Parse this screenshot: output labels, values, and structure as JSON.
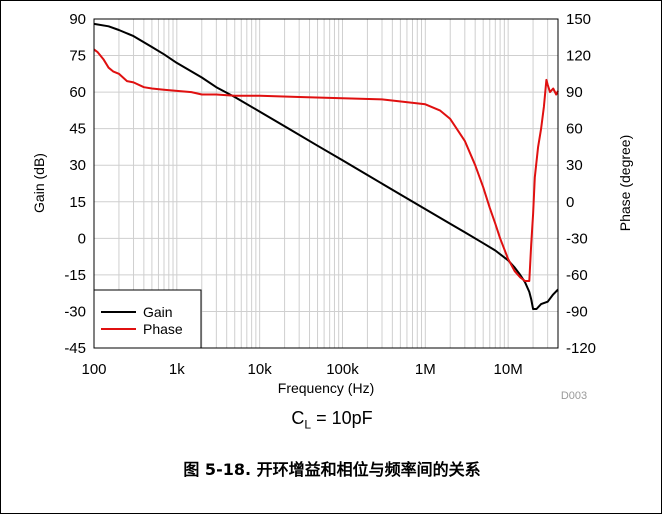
{
  "chart_data": {
    "type": "line",
    "xscale": "log",
    "xlabel": "Frequency (Hz)",
    "ylabel": "Gain (dB)",
    "y2label": "Phase (degree)",
    "xlim": [
      100,
      40000000
    ],
    "ylim": [
      -45,
      90
    ],
    "y2lim": [
      -120,
      150
    ],
    "x_ticks": [
      100,
      1000,
      10000,
      100000,
      1000000,
      10000000
    ],
    "x_tick_labels": [
      "100",
      "1k",
      "10k",
      "100k",
      "1M",
      "10M"
    ],
    "y_ticks": [
      90,
      75,
      60,
      45,
      30,
      15,
      0,
      -15,
      -30,
      -45
    ],
    "y_tick_labels": [
      "90",
      "75",
      "60",
      "45",
      "30",
      "15",
      "0",
      "-15",
      "-30",
      "-45"
    ],
    "y2_ticks": [
      150,
      120,
      90,
      60,
      30,
      0,
      -30,
      -60,
      -90,
      -120
    ],
    "y2_tick_labels": [
      "150",
      "120",
      "90",
      "60",
      "30",
      "0",
      "-30",
      "-60",
      "-90",
      "-120"
    ],
    "grid": true,
    "legend_position": "bottom-left",
    "figure_id": "D003",
    "series": [
      {
        "name": "Gain",
        "axis": "left",
        "color": "#000000",
        "x": [
          100,
          150,
          200,
          300,
          500,
          700,
          1000,
          2000,
          3000,
          5000,
          10000,
          20000,
          50000,
          100000,
          200000,
          500000,
          1000000,
          2000000,
          3000000,
          5000000,
          7000000,
          10000000,
          12000000,
          14000000,
          16000000,
          18000000,
          19000000,
          20000000,
          22000000,
          25000000,
          30000000,
          35000000,
          40000000
        ],
        "y": [
          88,
          87,
          85.5,
          83,
          78.5,
          75.5,
          72,
          66,
          62,
          58,
          52,
          46,
          38,
          32,
          26,
          18,
          12,
          6,
          2.5,
          -2,
          -5,
          -9,
          -12,
          -15,
          -18,
          -22,
          -25,
          -29,
          -29,
          -27,
          -26,
          -23,
          -21
        ]
      },
      {
        "name": "Phase",
        "axis": "right",
        "color": "#e01010",
        "x": [
          100,
          110,
          130,
          150,
          170,
          200,
          250,
          300,
          400,
          500,
          700,
          1000,
          1500,
          2000,
          3000,
          5000,
          10000,
          30000,
          100000,
          300000,
          1000000,
          1500000,
          2000000,
          3000000,
          4000000,
          5000000,
          6000000,
          7000000,
          8000000,
          10000000,
          12000000,
          14000000,
          16000000,
          17000000,
          18000000,
          19000000,
          20000000,
          21000000,
          23000000,
          25000000,
          27000000,
          29000000,
          30000000,
          32000000,
          35000000,
          38000000,
          40000000
        ],
        "y": [
          125,
          123,
          117,
          110,
          107,
          105,
          99,
          98,
          94,
          93,
          92,
          91,
          90,
          88,
          88,
          87,
          87,
          86,
          85,
          84,
          80,
          75,
          68,
          50,
          30,
          12,
          -5,
          -18,
          -30,
          -47,
          -57,
          -62,
          -65,
          -65,
          -65,
          -35,
          -10,
          20,
          45,
          60,
          78,
          100,
          96,
          90,
          93,
          88,
          91
        ]
      }
    ],
    "annotation": {
      "prefix": "C",
      "subscript": "L",
      "suffix": " = 10pF"
    }
  },
  "caption": "图 5-18. 开环增益和相位与频率间的关系"
}
